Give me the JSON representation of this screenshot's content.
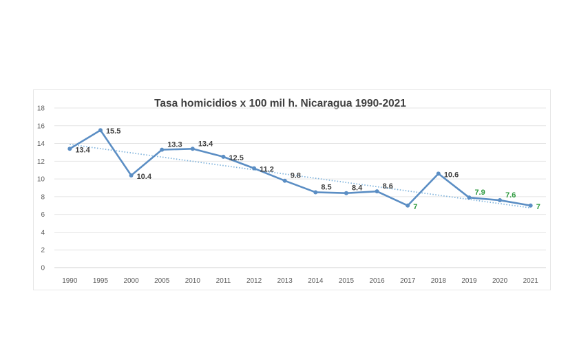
{
  "chart_data": {
    "type": "line",
    "title": "Tasa homicidios x 100 mil h. Nicaragua 1990-2021",
    "xlabel": "",
    "ylabel": "",
    "ylim": [
      0,
      18
    ],
    "yticks": [
      "0",
      "2",
      "4",
      "6",
      "8",
      "10",
      "12",
      "14",
      "16",
      "18"
    ],
    "grid": true,
    "categories": [
      "1990",
      "1995",
      "2000",
      "2005",
      "2010",
      "2011",
      "2012",
      "2013",
      "2014",
      "2015",
      "2016",
      "2017",
      "2018",
      "2019",
      "2020",
      "2021"
    ],
    "series": [
      {
        "name": "Tasa homicidios",
        "color": "#5b8ec4",
        "values": [
          13.4,
          15.5,
          10.4,
          13.3,
          13.4,
          12.5,
          11.2,
          9.8,
          8.5,
          8.4,
          8.6,
          7.0,
          10.6,
          7.9,
          7.6,
          7.0
        ],
        "labels": [
          "13.4",
          "15.5",
          "10.4",
          "13.3",
          "13.4",
          "12.5",
          "11.2",
          "9.8",
          "8.5",
          "8.4",
          "8.6",
          "7",
          "10.6",
          "7.9",
          "7.6",
          "7"
        ]
      }
    ],
    "trendline": {
      "type": "linear",
      "style": "dotted",
      "color": "#7fb3dc"
    },
    "label_colors": {
      "default": "#404040",
      "highlight": "#2e9a3e"
    },
    "highlight_indices": [
      11,
      13,
      14,
      15
    ]
  }
}
